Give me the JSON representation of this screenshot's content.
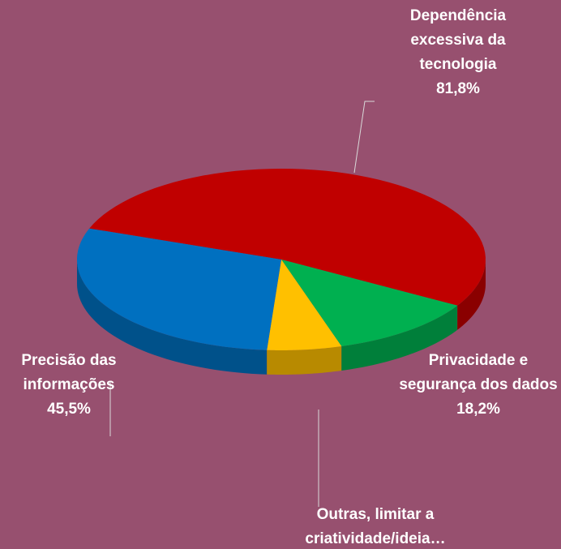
{
  "chart_data": {
    "type": "pie3d",
    "categories": [
      "Dependência excessiva da tecnologia",
      "Privacidade e segurança dos dados",
      "Outras, limitar a criatividade/ideia…",
      "Precisão das informações"
    ],
    "values": [
      81.8,
      18.2,
      9.1,
      45.5
    ],
    "value_labels": [
      "81,8%",
      "18,2%",
      null,
      "45,5%"
    ],
    "colors": [
      "#c00000",
      "#00b050",
      "#ffc000",
      "#0070c0"
    ]
  }
}
